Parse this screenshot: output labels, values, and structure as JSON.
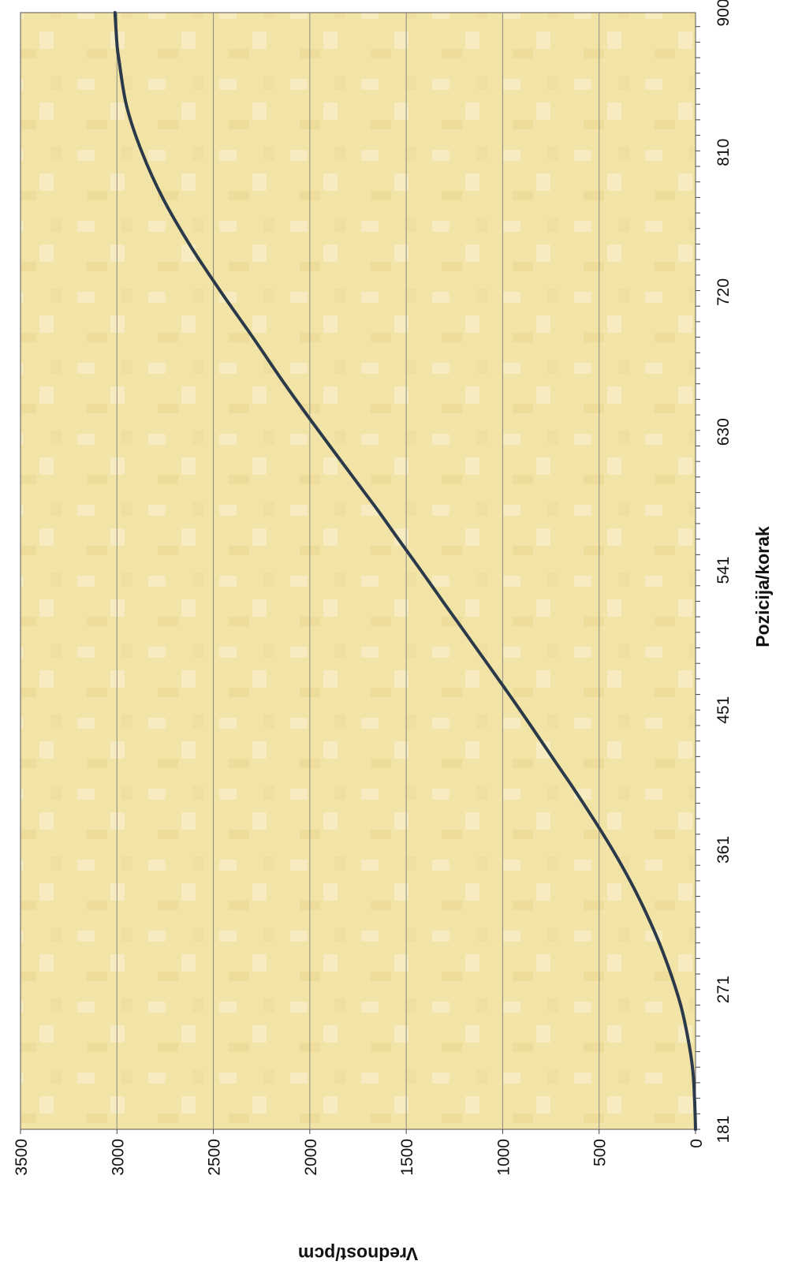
{
  "chart_data": {
    "type": "line",
    "orientation": "rotated-90-clockwise",
    "title": "",
    "xlabel": "Pozicija/korak",
    "ylabel": "Vrednost/pcm",
    "x_tick_labels": [
      "181",
      "271",
      "361",
      "451",
      "541",
      "630",
      "720",
      "810",
      "900"
    ],
    "y_tick_labels": [
      "0",
      "500",
      "1000",
      "1500",
      "2000",
      "2500",
      "3000",
      "3500"
    ],
    "xlim": [
      181,
      900
    ],
    "ylim": [
      0,
      3500
    ],
    "grid": "horizontal value gridlines",
    "legend": "none",
    "colors": {
      "plot_background": "#f2e3a6",
      "line": "#2a3a4a",
      "grid": "#8a8a80"
    },
    "series": [
      {
        "x": [
          181,
          200,
          220,
          240,
          260,
          280,
          300,
          320,
          340,
          361,
          380,
          400,
          420,
          451,
          480,
          500,
          520,
          541,
          560,
          580,
          600,
          630,
          660,
          690,
          720,
          750,
          780,
          810,
          840,
          870,
          880,
          900
        ],
        "values": [
          0,
          5,
          15,
          40,
          75,
          125,
          185,
          255,
          335,
          430,
          525,
          630,
          740,
          910,
          1075,
          1190,
          1305,
          1425,
          1535,
          1650,
          1770,
          1950,
          2125,
          2290,
          2460,
          2620,
          2760,
          2870,
          2950,
          2990,
          3000,
          3010
        ]
      }
    ]
  }
}
